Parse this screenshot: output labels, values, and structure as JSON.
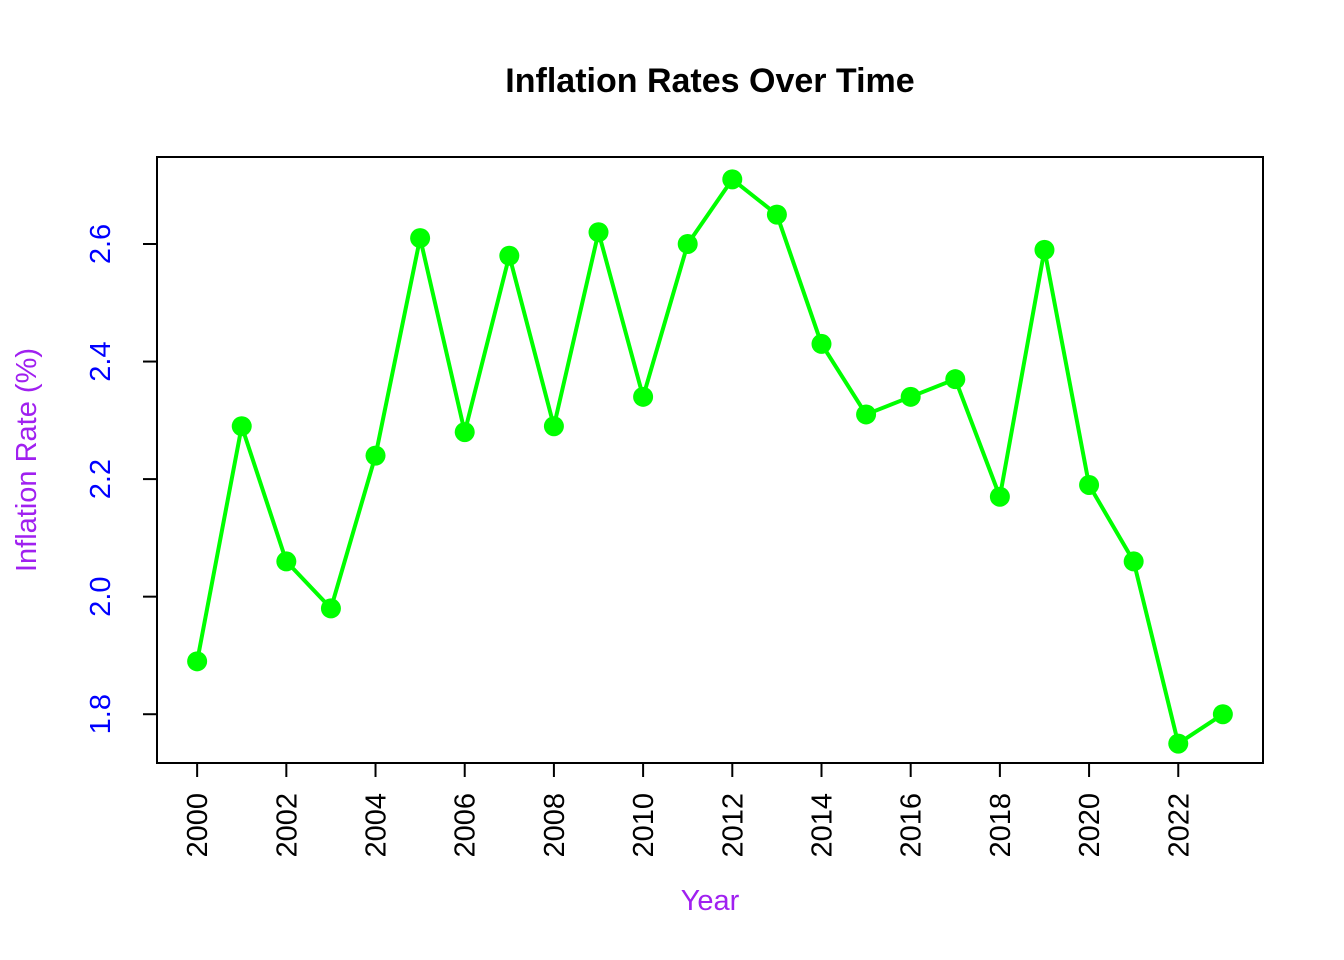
{
  "chart_data": {
    "type": "line",
    "title": "Inflation Rates Over Time",
    "xlabel": "Year",
    "ylabel": "Inflation Rate (%)",
    "x": [
      2000,
      2001,
      2002,
      2003,
      2004,
      2005,
      2006,
      2007,
      2008,
      2009,
      2010,
      2011,
      2012,
      2013,
      2014,
      2015,
      2016,
      2017,
      2018,
      2019,
      2020,
      2021,
      2022,
      2023
    ],
    "series": [
      {
        "values": [
          1.89,
          2.29,
          2.06,
          1.98,
          2.24,
          2.61,
          2.28,
          2.58,
          2.29,
          2.62,
          2.34,
          2.6,
          2.71,
          2.65,
          2.43,
          2.31,
          2.34,
          2.37,
          2.17,
          2.59,
          2.19,
          2.06,
          1.75,
          1.8
        ],
        "color": "#00ff00"
      }
    ],
    "xticks": [
      "2000",
      "2002",
      "2004",
      "2006",
      "2008",
      "2010",
      "2012",
      "2014",
      "2016",
      "2018",
      "2020",
      "2022"
    ],
    "yticks": [
      "1.8",
      "2.0",
      "2.2",
      "2.4",
      "2.6"
    ],
    "xlim": [
      1999.1,
      2023.9
    ],
    "ylim": [
      1.717,
      2.748
    ],
    "grid": false,
    "legend": "none",
    "colors": {
      "axis_title": "#a020f0",
      "y_tick_labels": "#0000ff",
      "x_tick_labels": "#000000",
      "line": "#00ff00"
    }
  }
}
